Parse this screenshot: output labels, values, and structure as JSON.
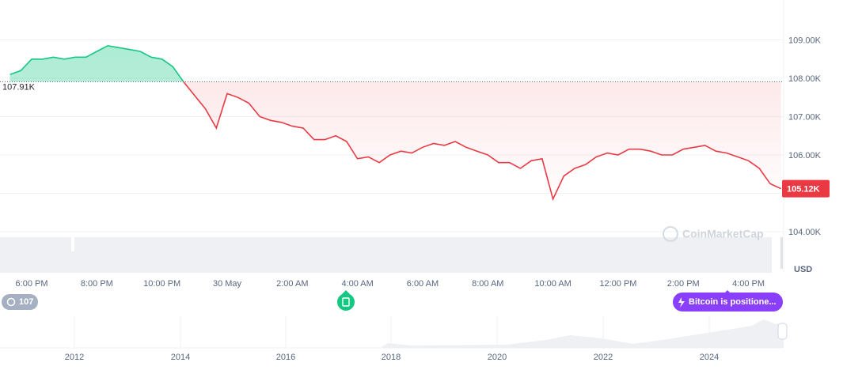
{
  "chart_data": {
    "type": "line",
    "categories": [
      null,
      null,
      "6:00 PM",
      null,
      null,
      null,
      null,
      null,
      "8:00 PM",
      null,
      null,
      null,
      null,
      null,
      "10:00 PM",
      null,
      null,
      null,
      null,
      null,
      "30 May",
      null,
      null,
      null,
      null,
      null,
      "2:00 AM",
      null,
      null,
      null,
      null,
      null,
      "4:00 AM",
      null,
      null,
      null,
      null,
      null,
      "6:00 AM",
      null,
      null,
      null,
      null,
      null,
      "8:00 AM",
      null,
      null,
      null,
      null,
      null,
      "10:00 AM",
      null,
      null,
      null,
      null,
      null,
      "12:00 PM",
      null,
      null,
      null,
      null,
      null,
      "2:00 PM",
      null,
      null,
      null,
      null,
      null,
      "4:00 PM",
      null,
      null,
      null
    ],
    "series": [
      {
        "values": [
          108.1,
          108.2,
          108.5,
          108.5,
          108.55,
          108.5,
          108.55,
          108.55,
          108.7,
          108.85,
          108.8,
          108.75,
          108.7,
          108.55,
          108.5,
          108.3,
          107.9,
          107.55,
          107.2,
          106.7,
          107.6,
          107.5,
          107.35,
          107.0,
          106.9,
          106.85,
          106.75,
          106.7,
          106.4,
          106.4,
          106.5,
          106.35,
          105.9,
          105.95,
          105.8,
          106.0,
          106.1,
          106.05,
          106.2,
          106.3,
          106.25,
          106.35,
          106.2,
          106.1,
          106.0,
          105.8,
          105.8,
          105.65,
          105.85,
          105.9,
          104.85,
          105.45,
          105.65,
          105.75,
          105.95,
          106.05,
          106.0,
          106.15,
          106.15,
          106.1,
          106.0,
          106.0,
          106.15,
          106.2,
          106.25,
          106.1,
          106.05,
          105.95,
          105.85,
          105.65,
          105.25,
          105.12
        ]
      }
    ],
    "up_color": "#16c784",
    "down_color": "#ea3943",
    "ylim": [
      104,
      110
    ],
    "yticks": [
      {
        "value": 104,
        "label": "104.00K"
      },
      {
        "value": 105,
        "label": ""
      },
      {
        "value": 106,
        "label": "106.00K"
      },
      {
        "value": 107,
        "label": "107.00K"
      },
      {
        "value": 108,
        "label": "108.00K"
      },
      {
        "value": 109,
        "label": "109.00K"
      }
    ],
    "grid": true,
    "baseline": {
      "value": 107.91,
      "label": "107.91K"
    },
    "current_price": {
      "value": 105.12,
      "label": "105.12K"
    },
    "currency": "USD",
    "watermark": "CoinMarketCap",
    "history_count": "107",
    "news_badge": "Bitcoin is positione...",
    "navigator_labels": [
      "2012",
      "2014",
      "2016",
      "2018",
      "2020",
      "2022",
      "2024"
    ]
  }
}
